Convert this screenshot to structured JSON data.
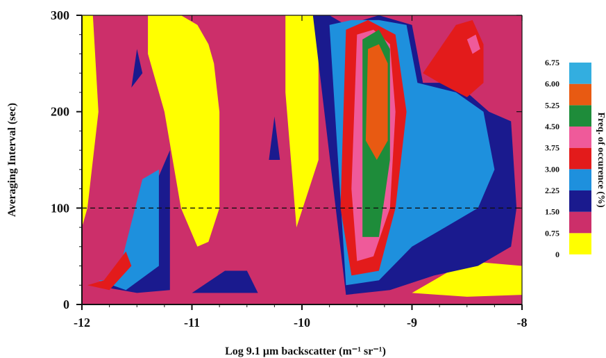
{
  "chart_data": {
    "type": "heatmap",
    "title": "",
    "xlabel": "Log 9.1 µm backscatter (m⁻¹ sr⁻¹)",
    "ylabel": "Averaging Interval (sec)",
    "xlim": [
      -12,
      -8
    ],
    "ylim": [
      0,
      300
    ],
    "x_ticks": [
      "-12",
      "-11",
      "-10",
      "-9",
      "-8"
    ],
    "y_ticks": [
      "0",
      "100",
      "200",
      "300"
    ],
    "reference_line": {
      "y": 100,
      "style": "dashed"
    },
    "colorbar": {
      "title": "Freq. of occurence (%)",
      "levels": [
        "0",
        "0.75",
        "1.50",
        "2.25",
        "3.00",
        "3.75",
        "4.50",
        "5.25",
        "6.00",
        "6.75"
      ],
      "colors": [
        "#ffff00",
        "#cc2f6a",
        "#1a1a8e",
        "#1e90dd",
        "#e31b1b",
        "#ef5a9a",
        "#1e8c3a",
        "#e85a12",
        "#33aee0"
      ]
    },
    "regions": [
      {
        "level_index": 0,
        "x": [
          -12.0,
          -11.9,
          -11.85,
          -11.95,
          -12.0
        ],
        "y": [
          300,
          300,
          200,
          100,
          80
        ]
      },
      {
        "level_index": 0,
        "x": [
          -11.4,
          -11.1,
          -10.95,
          -10.85,
          -10.8,
          -10.75,
          -10.75,
          -10.85,
          -10.95,
          -11.1,
          -11.25,
          -11.4
        ],
        "y": [
          300,
          300,
          290,
          270,
          250,
          200,
          100,
          65,
          60,
          100,
          200,
          260
        ]
      },
      {
        "level_index": 0,
        "x": [
          -10.15,
          -9.85,
          -9.85,
          -10.05,
          -10.15
        ],
        "y": [
          300,
          300,
          150,
          80,
          220
        ]
      },
      {
        "level_index": 0,
        "x": [
          -9.0,
          -8.5,
          -8.0,
          -8.0,
          -8.5
        ],
        "y": [
          12,
          8,
          10,
          40,
          45
        ]
      },
      {
        "level_index": 2,
        "x": [
          -11.9,
          -11.6,
          -11.35,
          -11.2,
          -11.2,
          -11.5,
          -11.9
        ],
        "y": [
          20,
          30,
          120,
          160,
          15,
          12,
          20
        ]
      },
      {
        "level_index": 3,
        "x": [
          -11.8,
          -11.65,
          -11.45,
          -11.3,
          -11.3,
          -11.6,
          -11.85
        ],
        "y": [
          25,
          40,
          130,
          140,
          40,
          15,
          25
        ]
      },
      {
        "level_index": 4,
        "x": [
          -11.95,
          -11.8,
          -11.6,
          -11.55,
          -11.75,
          -11.95
        ],
        "y": [
          20,
          25,
          55,
          40,
          15,
          20
        ]
      },
      {
        "level_index": 2,
        "x": [
          -11.5,
          -11.45,
          -11.55,
          -11.5
        ],
        "y": [
          265,
          240,
          225,
          265
        ]
      },
      {
        "level_index": 2,
        "x": [
          -10.25,
          -10.2,
          -10.3,
          -10.25
        ],
        "y": [
          195,
          150,
          150,
          195
        ]
      },
      {
        "level_index": 2,
        "x": [
          -11.0,
          -10.7,
          -10.5,
          -10.4,
          -10.75,
          -11.0
        ],
        "y": [
          12,
          35,
          35,
          12,
          12,
          12
        ]
      },
      {
        "level_index": 2,
        "x": [
          -9.9,
          -9.75,
          -9.6,
          -9.3,
          -9.0,
          -8.9,
          -8.6,
          -8.3,
          -8.1,
          -8.05,
          -8.1,
          -8.4,
          -8.8,
          -9.2,
          -9.6,
          -9.9
        ],
        "y": [
          300,
          300,
          290,
          300,
          290,
          230,
          230,
          200,
          190,
          100,
          60,
          40,
          30,
          15,
          10,
          300
        ]
      },
      {
        "level_index": 3,
        "x": [
          -9.75,
          -9.55,
          -9.3,
          -9.05,
          -8.95,
          -8.6,
          -8.35,
          -8.25,
          -8.4,
          -8.7,
          -9.0,
          -9.3,
          -9.6,
          -9.75
        ],
        "y": [
          290,
          295,
          295,
          290,
          230,
          220,
          200,
          140,
          100,
          80,
          60,
          25,
          20,
          290
        ]
      },
      {
        "level_index": 4,
        "x": [
          -9.6,
          -9.4,
          -9.15,
          -9.05,
          -9.15,
          -9.3,
          -9.55,
          -9.65,
          -9.6
        ],
        "y": [
          285,
          295,
          280,
          200,
          100,
          35,
          30,
          100,
          285
        ]
      },
      {
        "level_index": 5,
        "x": [
          -9.5,
          -9.35,
          -9.2,
          -9.15,
          -9.2,
          -9.35,
          -9.5,
          -9.55,
          -9.5
        ],
        "y": [
          280,
          285,
          270,
          200,
          100,
          50,
          45,
          120,
          280
        ]
      },
      {
        "level_index": 6,
        "x": [
          -9.45,
          -9.3,
          -9.2,
          -9.2,
          -9.3,
          -9.45,
          -9.45
        ],
        "y": [
          275,
          285,
          265,
          150,
          70,
          70,
          275
        ]
      },
      {
        "level_index": 7,
        "x": [
          -9.4,
          -9.3,
          -9.22,
          -9.22,
          -9.32,
          -9.42,
          -9.4
        ],
        "y": [
          265,
          270,
          250,
          170,
          150,
          170,
          265
        ]
      },
      {
        "level_index": 4,
        "x": [
          -8.9,
          -8.6,
          -8.45,
          -8.35,
          -8.35,
          -8.5,
          -8.75,
          -8.9
        ],
        "y": [
          240,
          290,
          295,
          270,
          230,
          215,
          230,
          240
        ]
      },
      {
        "level_index": 5,
        "x": [
          -8.5,
          -8.42,
          -8.38,
          -8.45,
          -8.5
        ],
        "y": [
          275,
          280,
          265,
          260,
          275
        ]
      }
    ]
  }
}
